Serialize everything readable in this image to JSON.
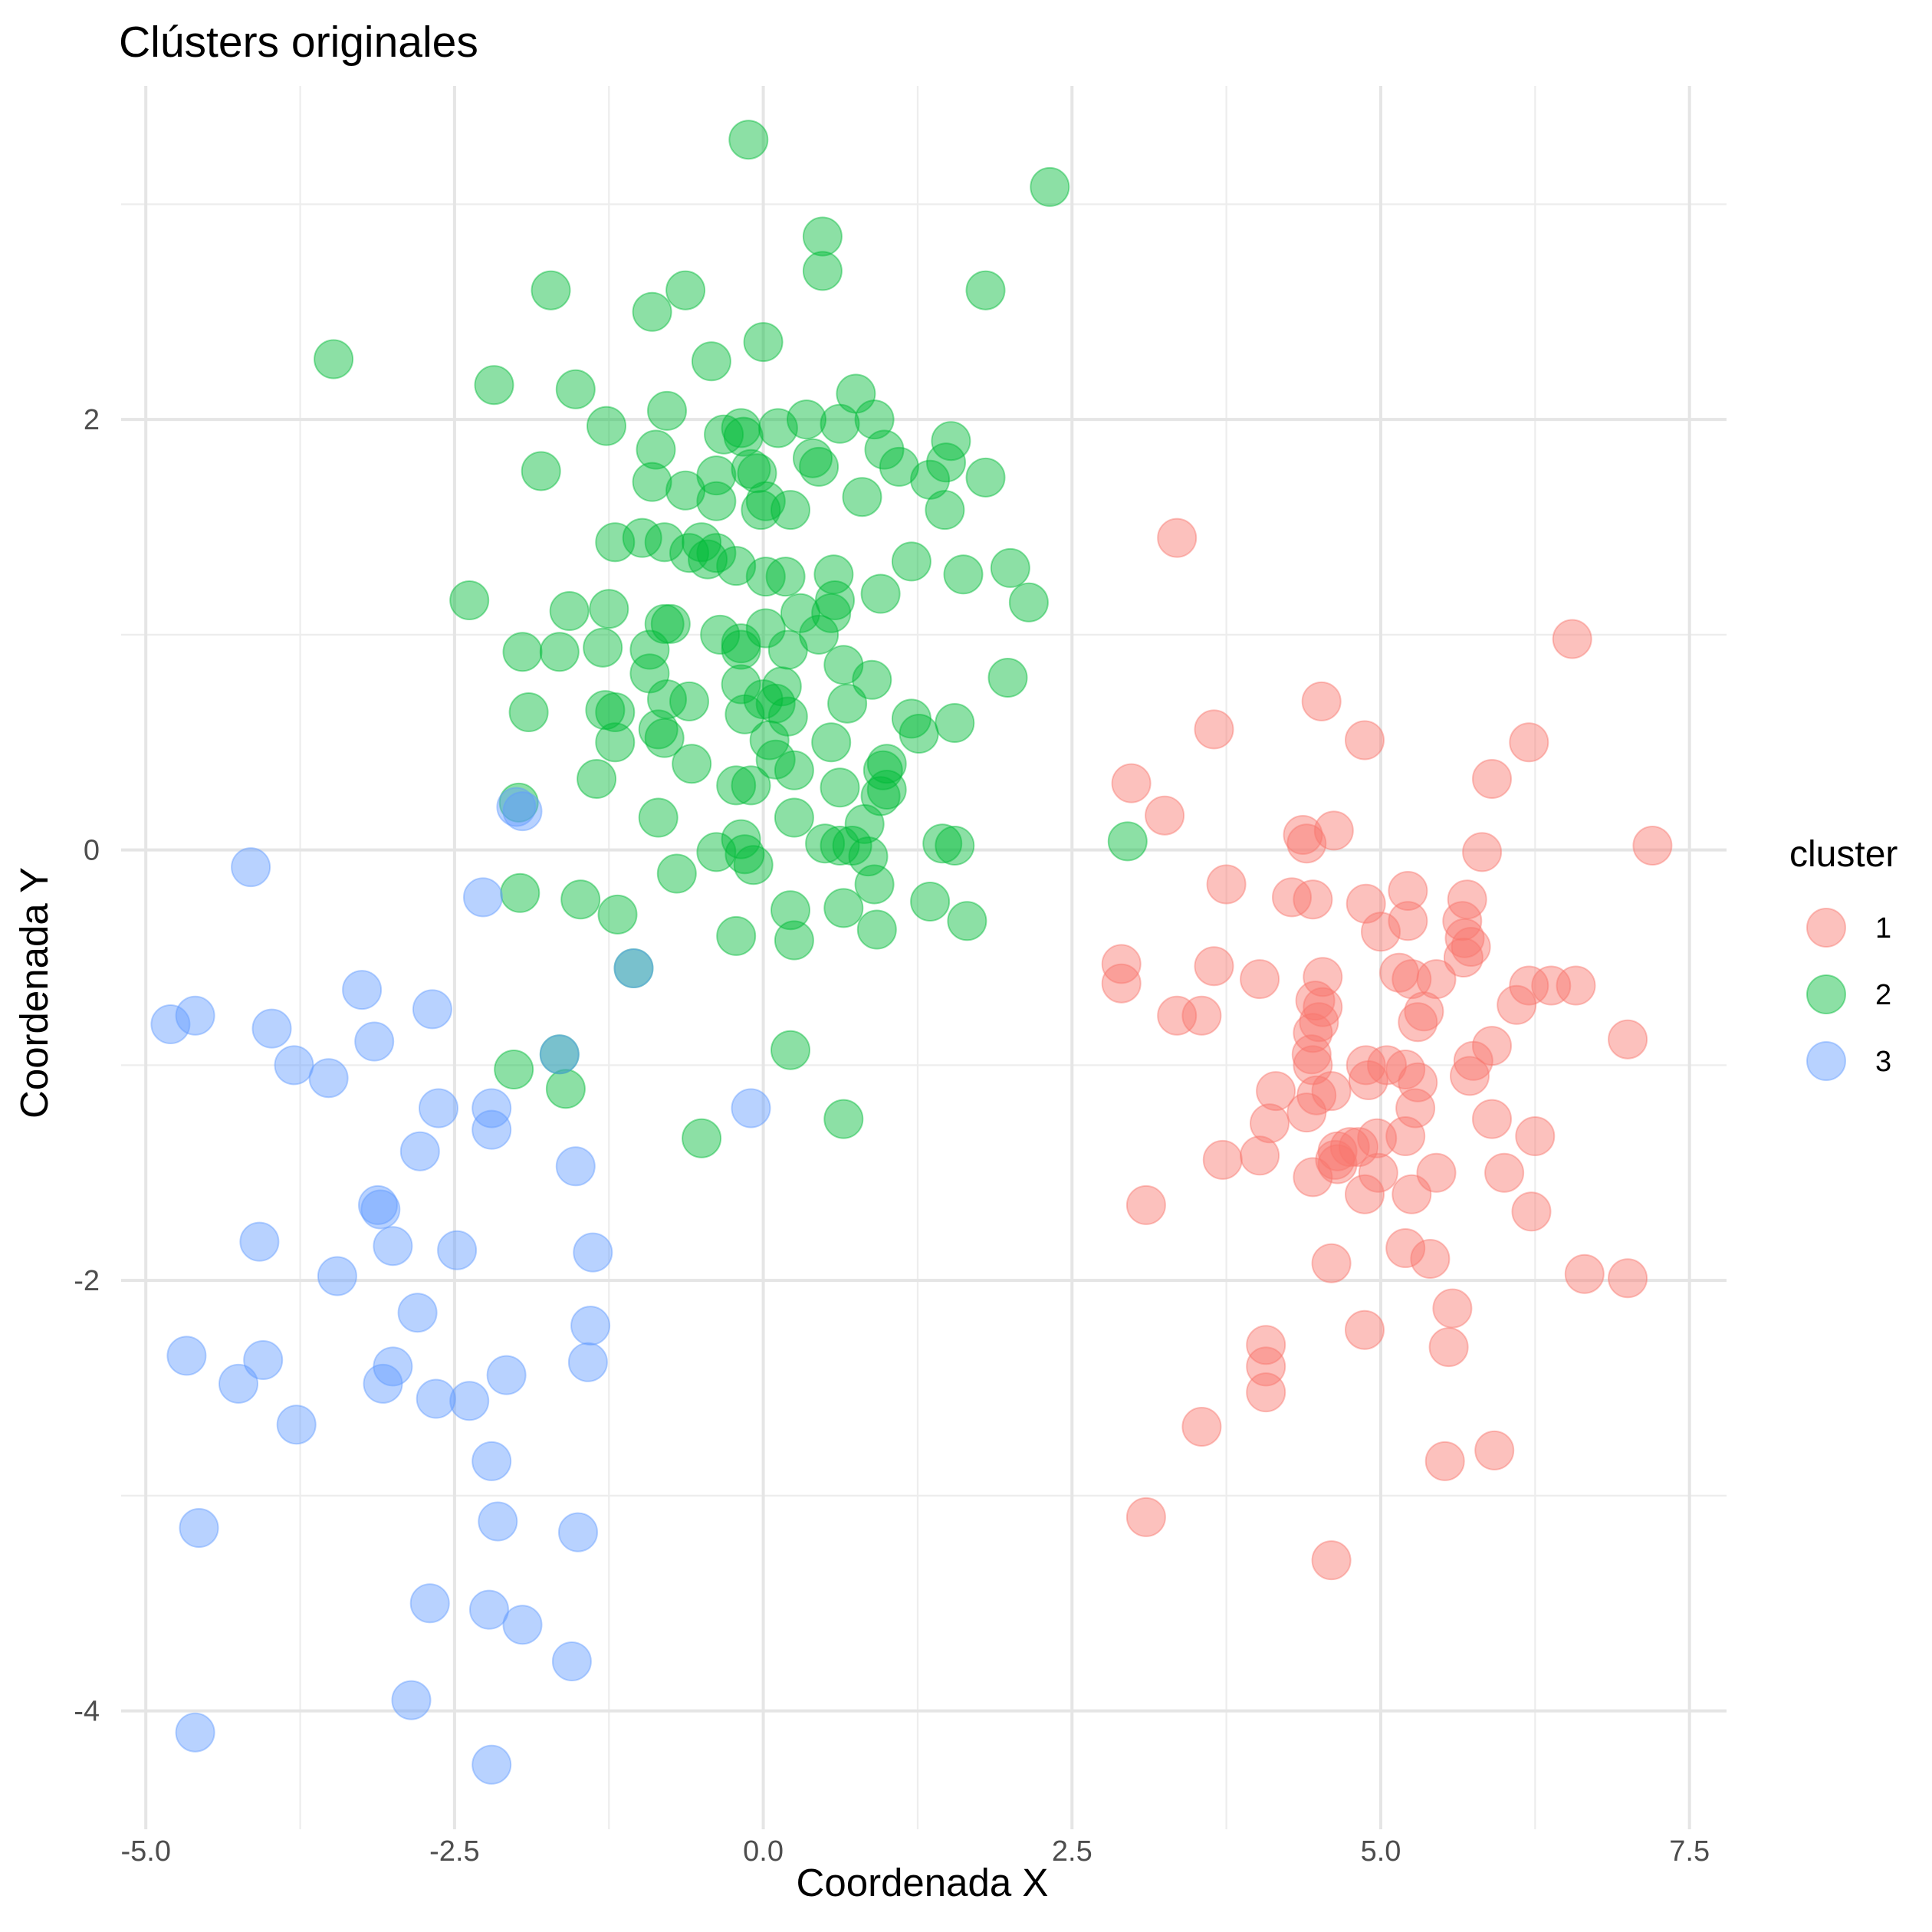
{
  "colors": {
    "cluster_1": "#F8766D",
    "cluster_2": "#00BA38",
    "cluster_3": "#619CFF",
    "background": "#FFFFFF",
    "grid": "#E5E5E5"
  },
  "chart_data": {
    "type": "scatter",
    "title": "Clústers originales",
    "xlabel": "Coordenada X",
    "ylabel": "Coordenada Y",
    "xlim": [
      -5.2,
      7.8
    ],
    "ylim": [
      -4.55,
      3.55
    ],
    "x_ticks": [
      -5.0,
      -2.5,
      0.0,
      2.5,
      5.0,
      7.5
    ],
    "x_tick_labels": [
      "-5.0",
      "-2.5",
      "0.0",
      "2.5",
      "5.0",
      "7.5"
    ],
    "y_ticks": [
      -4,
      -2,
      0,
      2
    ],
    "y_tick_labels": [
      "-4",
      "-2",
      "0",
      "2"
    ],
    "grid": true,
    "point_alpha": 0.45,
    "legend": {
      "title": "cluster",
      "position": "right"
    },
    "series": [
      {
        "name": "1",
        "color": "#F8766D",
        "points": [
          [
            3.35,
            1.45
          ],
          [
            6.55,
            0.98
          ],
          [
            4.52,
            0.69
          ],
          [
            3.65,
            0.56
          ],
          [
            4.87,
            0.51
          ],
          [
            6.2,
            0.5
          ],
          [
            5.9,
            0.33
          ],
          [
            2.98,
            0.31
          ],
          [
            3.25,
            0.16
          ],
          [
            4.62,
            0.09
          ],
          [
            4.37,
            0.07
          ],
          [
            4.4,
            0.03
          ],
          [
            7.2,
            0.02
          ],
          [
            5.82,
            -0.01
          ],
          [
            3.75,
            -0.16
          ],
          [
            4.28,
            -0.22
          ],
          [
            4.45,
            -0.23
          ],
          [
            5.22,
            -0.19
          ],
          [
            5.7,
            -0.23
          ],
          [
            4.88,
            -0.25
          ],
          [
            5.66,
            -0.33
          ],
          [
            5.22,
            -0.33
          ],
          [
            5.0,
            -0.38
          ],
          [
            5.68,
            -0.41
          ],
          [
            5.73,
            -0.45
          ],
          [
            5.67,
            -0.5
          ],
          [
            2.9,
            -0.53
          ],
          [
            3.65,
            -0.54
          ],
          [
            4.02,
            -0.6
          ],
          [
            4.53,
            -0.59
          ],
          [
            5.15,
            -0.57
          ],
          [
            5.25,
            -0.6
          ],
          [
            5.45,
            -0.6
          ],
          [
            2.9,
            -0.62
          ],
          [
            6.2,
            -0.63
          ],
          [
            6.38,
            -0.63
          ],
          [
            6.58,
            -0.63
          ],
          [
            6.1,
            -0.72
          ],
          [
            4.47,
            -0.7
          ],
          [
            4.53,
            -0.73
          ],
          [
            3.35,
            -0.77
          ],
          [
            3.55,
            -0.77
          ],
          [
            5.35,
            -0.75
          ],
          [
            5.3,
            -0.8
          ],
          [
            4.5,
            -0.8
          ],
          [
            4.45,
            -0.85
          ],
          [
            7.0,
            -0.88
          ],
          [
            5.9,
            -0.91
          ],
          [
            5.75,
            -0.98
          ],
          [
            4.44,
            -0.95
          ],
          [
            4.45,
            -1.0
          ],
          [
            4.88,
            -1.0
          ],
          [
            5.05,
            -1.0
          ],
          [
            5.2,
            -1.02
          ],
          [
            5.72,
            -1.05
          ],
          [
            4.9,
            -1.07
          ],
          [
            5.3,
            -1.08
          ],
          [
            4.15,
            -1.12
          ],
          [
            4.6,
            -1.12
          ],
          [
            4.48,
            -1.14
          ],
          [
            5.28,
            -1.2
          ],
          [
            4.4,
            -1.22
          ],
          [
            4.1,
            -1.27
          ],
          [
            5.9,
            -1.25
          ],
          [
            5.2,
            -1.33
          ],
          [
            4.97,
            -1.34
          ],
          [
            6.25,
            -1.33
          ],
          [
            4.75,
            -1.38
          ],
          [
            4.82,
            -1.38
          ],
          [
            4.65,
            -1.4
          ],
          [
            4.63,
            -1.44
          ],
          [
            4.02,
            -1.42
          ],
          [
            3.72,
            -1.44
          ],
          [
            4.65,
            -1.46
          ],
          [
            6.0,
            -1.5
          ],
          [
            4.98,
            -1.5
          ],
          [
            5.45,
            -1.5
          ],
          [
            4.45,
            -1.52
          ],
          [
            4.87,
            -1.6
          ],
          [
            5.25,
            -1.6
          ],
          [
            3.1,
            -1.65
          ],
          [
            6.22,
            -1.68
          ],
          [
            5.2,
            -1.85
          ],
          [
            5.4,
            -1.9
          ],
          [
            4.6,
            -1.92
          ],
          [
            6.65,
            -1.97
          ],
          [
            7.0,
            -1.99
          ],
          [
            5.58,
            -2.13
          ],
          [
            4.87,
            -2.23
          ],
          [
            4.07,
            -2.3
          ],
          [
            5.55,
            -2.31
          ],
          [
            4.07,
            -2.4
          ],
          [
            4.07,
            -2.52
          ],
          [
            3.55,
            -2.68
          ],
          [
            5.92,
            -2.79
          ],
          [
            5.52,
            -2.84
          ],
          [
            3.1,
            -3.1
          ],
          [
            4.6,
            -3.3
          ]
        ]
      },
      {
        "name": "2",
        "color": "#00BA38",
        "points": [
          [
            -0.12,
            3.3
          ],
          [
            2.32,
            3.08
          ],
          [
            0.48,
            2.85
          ],
          [
            0.48,
            2.69
          ],
          [
            -1.72,
            2.6
          ],
          [
            1.8,
            2.6
          ],
          [
            -0.63,
            2.6
          ],
          [
            -0.9,
            2.5
          ],
          [
            -3.48,
            2.28
          ],
          [
            0.0,
            2.36
          ],
          [
            -0.42,
            2.27
          ],
          [
            -2.18,
            2.16
          ],
          [
            -1.52,
            2.14
          ],
          [
            0.75,
            2.12
          ],
          [
            -0.78,
            2.04
          ],
          [
            0.35,
            2.0
          ],
          [
            0.9,
            2.0
          ],
          [
            0.62,
            1.98
          ],
          [
            -1.27,
            1.97
          ],
          [
            0.12,
            1.96
          ],
          [
            -0.18,
            1.96
          ],
          [
            -0.32,
            1.93
          ],
          [
            -0.16,
            1.92
          ],
          [
            1.52,
            1.9
          ],
          [
            0.98,
            1.86
          ],
          [
            -0.87,
            1.86
          ],
          [
            0.4,
            1.82
          ],
          [
            1.48,
            1.8
          ],
          [
            1.1,
            1.78
          ],
          [
            0.45,
            1.78
          ],
          [
            -0.1,
            1.77
          ],
          [
            -0.05,
            1.75
          ],
          [
            -1.8,
            1.76
          ],
          [
            1.8,
            1.73
          ],
          [
            -0.38,
            1.74
          ],
          [
            1.35,
            1.72
          ],
          [
            -0.9,
            1.71
          ],
          [
            -0.63,
            1.67
          ],
          [
            -0.38,
            1.62
          ],
          [
            0.8,
            1.64
          ],
          [
            0.02,
            1.62
          ],
          [
            -0.02,
            1.58
          ],
          [
            0.22,
            1.58
          ],
          [
            1.47,
            1.58
          ],
          [
            -0.98,
            1.45
          ],
          [
            -1.2,
            1.43
          ],
          [
            -0.8,
            1.43
          ],
          [
            -0.5,
            1.43
          ],
          [
            -0.6,
            1.38
          ],
          [
            -0.38,
            1.38
          ],
          [
            -0.45,
            1.35
          ],
          [
            -0.22,
            1.32
          ],
          [
            1.2,
            1.34
          ],
          [
            0.57,
            1.28
          ],
          [
            1.62,
            1.28
          ],
          [
            2.0,
            1.31
          ],
          [
            0.02,
            1.27
          ],
          [
            0.18,
            1.27
          ],
          [
            0.58,
            1.16
          ],
          [
            -2.38,
            1.16
          ],
          [
            0.95,
            1.19
          ],
          [
            2.15,
            1.15
          ],
          [
            -1.57,
            1.11
          ],
          [
            -1.25,
            1.12
          ],
          [
            0.3,
            1.1
          ],
          [
            0.55,
            1.1
          ],
          [
            -0.8,
            1.05
          ],
          [
            -0.75,
            1.05
          ],
          [
            0.02,
            1.03
          ],
          [
            0.45,
            1.0
          ],
          [
            -0.35,
            1.0
          ],
          [
            -0.18,
            0.96
          ],
          [
            -1.3,
            0.94
          ],
          [
            -0.92,
            0.93
          ],
          [
            -0.18,
            0.93
          ],
          [
            0.2,
            0.93
          ],
          [
            -1.95,
            0.92
          ],
          [
            -1.65,
            0.92
          ],
          [
            0.65,
            0.86
          ],
          [
            -0.92,
            0.82
          ],
          [
            1.98,
            0.8
          ],
          [
            0.88,
            0.79
          ],
          [
            -0.18,
            0.77
          ],
          [
            0.15,
            0.76
          ],
          [
            -0.78,
            0.7
          ],
          [
            -0.6,
            0.69
          ],
          [
            0.0,
            0.7
          ],
          [
            0.1,
            0.68
          ],
          [
            0.68,
            0.68
          ],
          [
            -1.28,
            0.65
          ],
          [
            -1.2,
            0.64
          ],
          [
            -1.9,
            0.64
          ],
          [
            -0.15,
            0.63
          ],
          [
            0.2,
            0.62
          ],
          [
            1.2,
            0.61
          ],
          [
            1.55,
            0.59
          ],
          [
            -0.85,
            0.56
          ],
          [
            -0.8,
            0.52
          ],
          [
            1.26,
            0.54
          ],
          [
            0.05,
            0.51
          ],
          [
            -1.2,
            0.5
          ],
          [
            0.55,
            0.5
          ],
          [
            -0.58,
            0.4
          ],
          [
            0.1,
            0.42
          ],
          [
            1.0,
            0.4
          ],
          [
            0.97,
            0.37
          ],
          [
            0.25,
            0.37
          ],
          [
            -1.35,
            0.33
          ],
          [
            -0.22,
            0.3
          ],
          [
            -0.1,
            0.3
          ],
          [
            0.62,
            0.29
          ],
          [
            1.0,
            0.28
          ],
          [
            0.95,
            0.25
          ],
          [
            -1.98,
            0.22
          ],
          [
            -0.85,
            0.15
          ],
          [
            0.25,
            0.15
          ],
          [
            0.82,
            0.12
          ],
          [
            2.95,
            0.04
          ],
          [
            -0.18,
            0.05
          ],
          [
            0.5,
            0.03
          ],
          [
            0.62,
            0.02
          ],
          [
            1.45,
            0.03
          ],
          [
            1.55,
            0.02
          ],
          [
            0.72,
            0.02
          ],
          [
            -0.38,
            -0.01
          ],
          [
            -0.15,
            -0.02
          ],
          [
            0.85,
            -0.03
          ],
          [
            -0.08,
            -0.07
          ],
          [
            -0.7,
            -0.11
          ],
          [
            0.9,
            -0.16
          ],
          [
            -1.97,
            -0.2
          ],
          [
            -1.48,
            -0.23
          ],
          [
            1.35,
            -0.24
          ],
          [
            -1.18,
            -0.3
          ],
          [
            0.65,
            -0.27
          ],
          [
            0.22,
            -0.28
          ],
          [
            1.65,
            -0.33
          ],
          [
            0.92,
            -0.37
          ],
          [
            -0.22,
            -0.4
          ],
          [
            0.25,
            -0.42
          ],
          [
            -1.05,
            -0.55
          ],
          [
            0.22,
            -0.93
          ],
          [
            -1.65,
            -0.95
          ],
          [
            -2.02,
            -1.02
          ],
          [
            -1.6,
            -1.11
          ],
          [
            0.65,
            -1.25
          ],
          [
            -0.5,
            -1.34
          ]
        ]
      },
      {
        "name": "3",
        "color": "#619CFF",
        "points": [
          [
            -2.0,
            0.2
          ],
          [
            -1.95,
            0.18
          ],
          [
            -4.15,
            -0.08
          ],
          [
            -2.27,
            -0.22
          ],
          [
            -1.05,
            -0.55
          ],
          [
            -3.25,
            -0.65
          ],
          [
            -2.68,
            -0.74
          ],
          [
            -4.6,
            -0.77
          ],
          [
            -4.8,
            -0.81
          ],
          [
            -3.98,
            -0.83
          ],
          [
            -3.15,
            -0.89
          ],
          [
            -1.65,
            -0.95
          ],
          [
            -3.8,
            -1.0
          ],
          [
            -3.52,
            -1.06
          ],
          [
            -0.1,
            -1.2
          ],
          [
            -2.63,
            -1.2
          ],
          [
            -2.2,
            -1.2
          ],
          [
            -2.2,
            -1.3
          ],
          [
            -2.78,
            -1.4
          ],
          [
            -1.52,
            -1.47
          ],
          [
            -3.1,
            -1.67
          ],
          [
            -3.12,
            -1.65
          ],
          [
            -4.08,
            -1.82
          ],
          [
            -3.0,
            -1.84
          ],
          [
            -2.48,
            -1.86
          ],
          [
            -1.38,
            -1.87
          ],
          [
            -3.45,
            -1.98
          ],
          [
            -2.8,
            -2.15
          ],
          [
            -1.4,
            -2.21
          ],
          [
            -4.67,
            -2.35
          ],
          [
            -4.05,
            -2.37
          ],
          [
            -3.0,
            -2.4
          ],
          [
            -1.42,
            -2.38
          ],
          [
            -2.08,
            -2.44
          ],
          [
            -4.25,
            -2.48
          ],
          [
            -3.08,
            -2.48
          ],
          [
            -2.65,
            -2.55
          ],
          [
            -2.38,
            -2.56
          ],
          [
            -3.78,
            -2.67
          ],
          [
            -2.2,
            -2.84
          ],
          [
            -4.57,
            -3.15
          ],
          [
            -2.15,
            -3.12
          ],
          [
            -1.5,
            -3.17
          ],
          [
            -2.7,
            -3.5
          ],
          [
            -2.22,
            -3.53
          ],
          [
            -1.95,
            -3.6
          ],
          [
            -1.55,
            -3.77
          ],
          [
            -2.85,
            -3.95
          ],
          [
            -4.6,
            -4.1
          ],
          [
            -2.2,
            -4.25
          ]
        ]
      }
    ]
  }
}
